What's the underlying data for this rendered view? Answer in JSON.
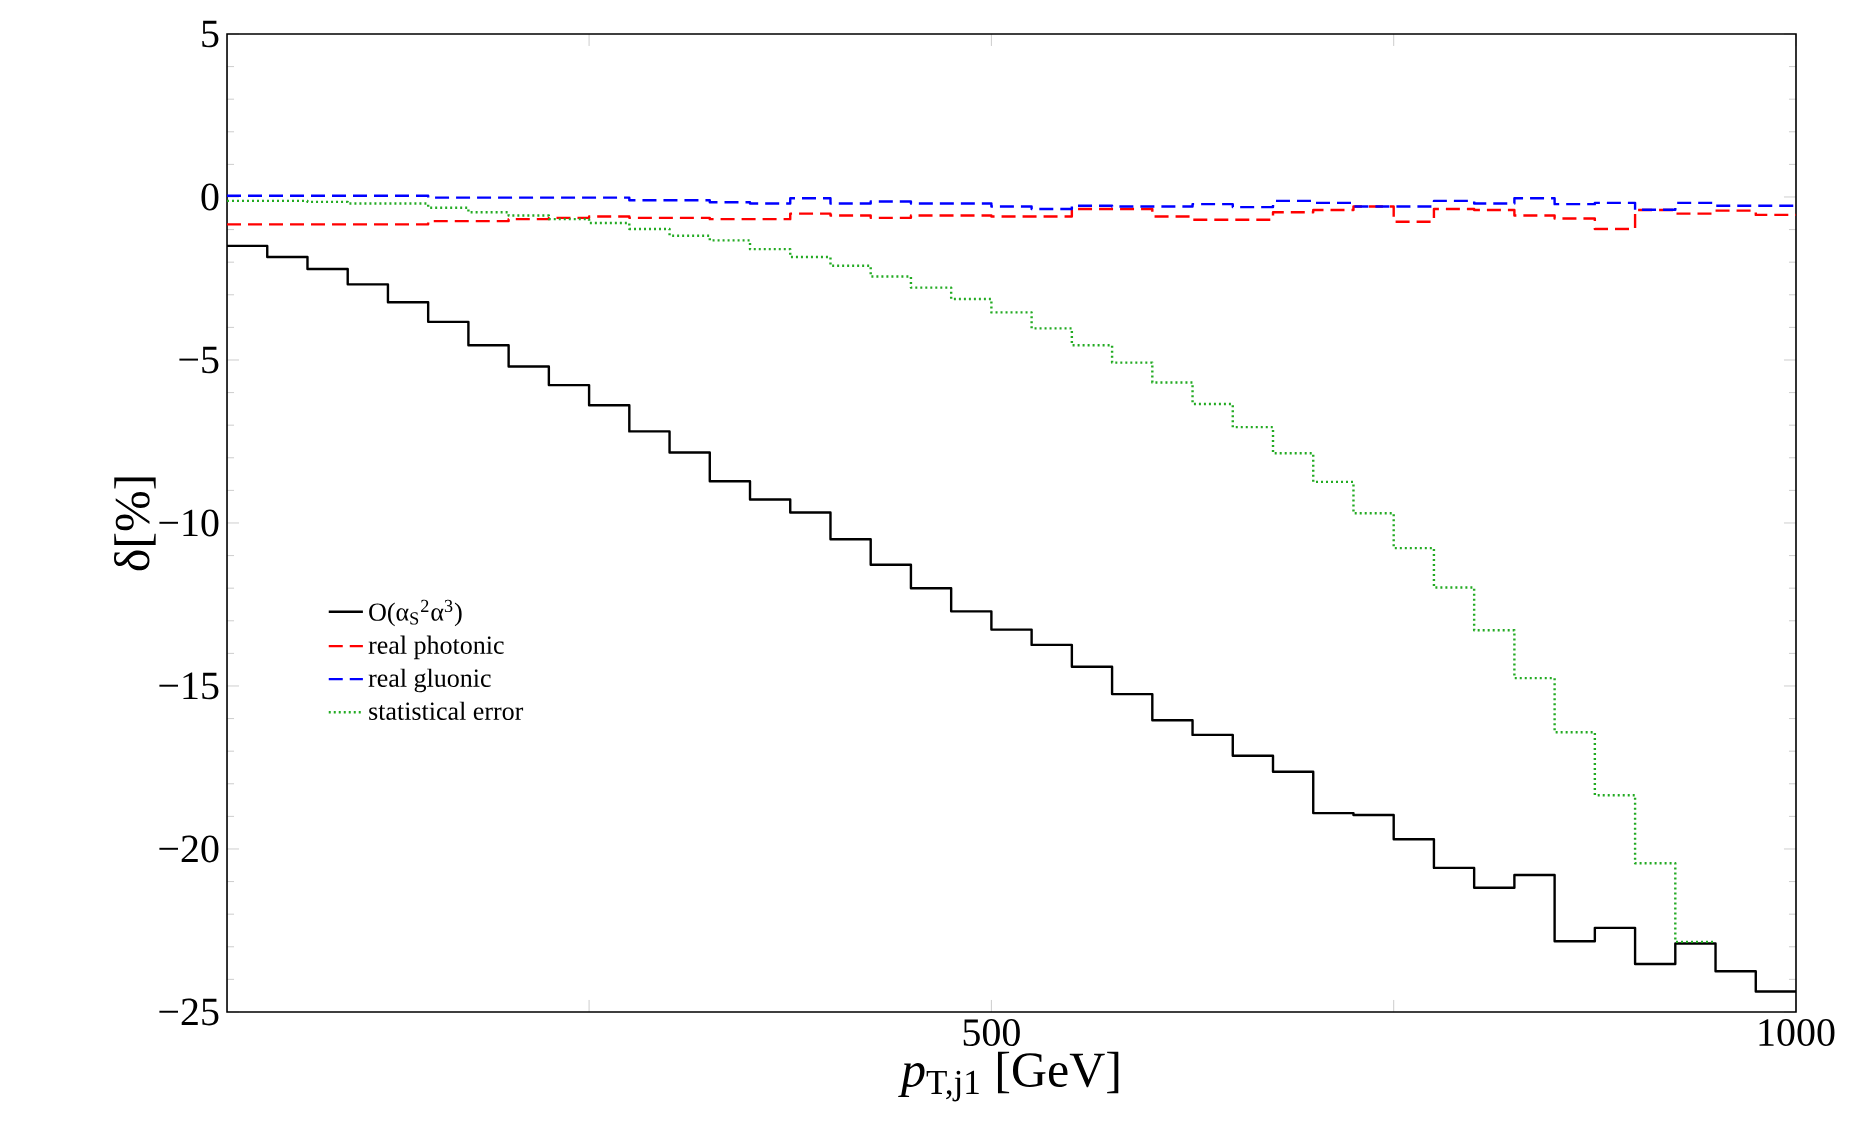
{
  "chart_data": {
    "type": "histogram",
    "xlabel": "*p*$_{T,j1}$ [GeV]",
    "ylabel": "δ[%]",
    "bins": [
      25,
      50,
      75,
      100,
      125,
      150,
      175,
      200,
      225,
      250,
      275,
      300,
      325,
      350,
      375,
      400,
      425,
      450,
      475,
      500,
      525,
      550,
      575,
      600,
      625,
      650,
      675,
      700,
      725,
      750,
      775,
      800,
      825,
      850,
      875,
      900,
      925,
      950,
      975,
      1000
    ],
    "series": [
      {
        "name": "O(α$_{S}$$^{2}$α$^{3}$)",
        "color": "#000000",
        "line_style": "solid",
        "values": [
          -1.5,
          -1.84,
          -2.21,
          -2.68,
          -3.23,
          -3.83,
          -4.55,
          -5.2,
          -5.77,
          -6.39,
          -7.19,
          -7.84,
          -8.72,
          -9.28,
          -9.68,
          -10.5,
          -11.28,
          -12.0,
          -12.71,
          -13.27,
          -13.74,
          -14.41,
          -15.25,
          -16.05,
          -16.5,
          -17.14,
          -17.63,
          -18.9,
          -18.96,
          -19.7,
          -20.58,
          -21.19,
          -20.8,
          -22.83,
          -22.42,
          -23.53,
          -22.9,
          -23.75,
          -24.37
        ]
      },
      {
        "name": "real photonic",
        "color": "#ff0000",
        "line_style": "dashed",
        "values": [
          -0.84,
          -0.84,
          -0.84,
          -0.84,
          -0.84,
          -0.74,
          -0.74,
          -0.68,
          -0.64,
          -0.6,
          -0.64,
          -0.64,
          -0.68,
          -0.68,
          -0.51,
          -0.57,
          -0.64,
          -0.57,
          -0.57,
          -0.6,
          -0.6,
          -0.37,
          -0.37,
          -0.6,
          -0.7,
          -0.7,
          -0.47,
          -0.4,
          -0.29,
          -0.76,
          -0.37,
          -0.4,
          -0.57,
          -0.66,
          -0.98,
          -0.4,
          -0.51,
          -0.42,
          -0.55
        ]
      },
      {
        "name": "real gluonic",
        "color": "#0000ff",
        "line_style": "dashed",
        "values": [
          0.04,
          0.04,
          0.04,
          0.04,
          0.04,
          -0.02,
          -0.02,
          -0.02,
          -0.02,
          -0.02,
          -0.1,
          -0.1,
          -0.16,
          -0.2,
          -0.04,
          -0.2,
          -0.14,
          -0.2,
          -0.2,
          -0.29,
          -0.37,
          -0.27,
          -0.29,
          -0.29,
          -0.22,
          -0.31,
          -0.12,
          -0.18,
          -0.29,
          -0.29,
          -0.12,
          -0.2,
          -0.04,
          -0.22,
          -0.18,
          -0.39,
          -0.18,
          -0.27,
          -0.27
        ]
      },
      {
        "name": "statistical error",
        "color": "#22aa22",
        "line_style": "dotted",
        "bins": [
          25,
          50,
          75,
          100,
          125,
          150,
          175,
          200,
          225,
          250,
          275,
          300,
          325,
          350,
          375,
          400,
          425,
          450,
          475,
          500,
          525,
          550,
          575,
          600,
          625,
          650,
          675,
          700,
          725,
          750,
          775,
          800,
          825,
          850,
          875,
          900,
          925,
          950
        ],
        "values": [
          -0.12,
          -0.12,
          -0.15,
          -0.2,
          -0.2,
          -0.33,
          -0.47,
          -0.57,
          -0.68,
          -0.8,
          -0.98,
          -1.19,
          -1.33,
          -1.6,
          -1.84,
          -2.11,
          -2.44,
          -2.78,
          -3.13,
          -3.54,
          -4.03,
          -4.55,
          -5.08,
          -5.69,
          -6.35,
          -7.06,
          -7.86,
          -8.74,
          -9.7,
          -10.77,
          -11.98,
          -13.29,
          -14.76,
          -16.42,
          -18.35,
          -20.44,
          -22.85
        ]
      }
    ],
    "xlim": [
      25,
      1000
    ],
    "ylim": [
      -25,
      5
    ],
    "xticks": [
      {
        "value": 250,
        "label": null
      },
      500,
      {
        "value": 750,
        "label": null
      },
      1000
    ],
    "yticks": [
      {
        "value": -25,
        "label": "−25"
      },
      {
        "value": -20,
        "label": "−20"
      },
      {
        "value": -15,
        "label": "−15"
      },
      {
        "value": -10,
        "label": "−10"
      },
      {
        "value": -5,
        "label": "−5"
      },
      0,
      5
    ],
    "legend": "left"
  }
}
